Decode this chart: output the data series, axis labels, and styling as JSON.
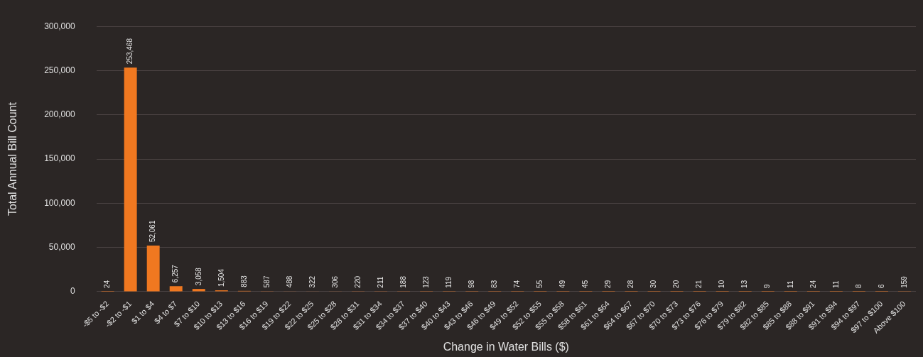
{
  "chart_data": {
    "type": "bar",
    "xlabel": "Change in Water Bills ($)",
    "ylabel": "Total Annual Bill Count",
    "categories": [
      "-$5 to -$2",
      "-$2 to -$1",
      "$1 to $4",
      "$4 to $7",
      "$7 to $10",
      "$10 to $13",
      "$13 to $16",
      "$16 to $19",
      "$19 to $22",
      "$22 to $25",
      "$25 to $28",
      "$28 to $31",
      "$31 to $34",
      "$34 to $37",
      "$37 to $40",
      "$40 to $43",
      "$43 to $46",
      "$46 to $49",
      "$49 to $52",
      "$52 to $55",
      "$55 to $58",
      "$58 to $61",
      "$61 to $64",
      "$64 to $67",
      "$67 to $70",
      "$70 to $73",
      "$73 to $76",
      "$76 to $79",
      "$79 to $82",
      "$82 to $85",
      "$85 to $88",
      "$88 to $91",
      "$91 to $94",
      "$94 to $97",
      "$97 to $100",
      "Above $100"
    ],
    "values": [
      24,
      253468,
      52061,
      6257,
      3058,
      1504,
      883,
      587,
      488,
      322,
      306,
      220,
      211,
      188,
      123,
      119,
      98,
      83,
      74,
      55,
      49,
      45,
      29,
      28,
      30,
      20,
      21,
      10,
      13,
      9,
      11,
      24,
      11,
      8,
      6,
      159
    ],
    "color": "#f07820",
    "ylim": [
      0,
      300000
    ],
    "yticks": [
      {
        "value": 0,
        "label": "0"
      },
      {
        "value": 50000,
        "label": "50,000"
      },
      {
        "value": 100000,
        "label": "100,000"
      },
      {
        "value": 150000,
        "label": "150,000"
      },
      {
        "value": 200000,
        "label": "200,000"
      },
      {
        "value": 250000,
        "label": "250,000"
      },
      {
        "value": 300000,
        "label": "300,000"
      }
    ],
    "value_labels": [
      "24",
      "253,468",
      "52,061",
      "6,257",
      "3,058",
      "1,504",
      "883",
      "587",
      "488",
      "322",
      "306",
      "220",
      "211",
      "188",
      "123",
      "119",
      "98",
      "83",
      "74",
      "55",
      "49",
      "45",
      "29",
      "28",
      "30",
      "20",
      "21",
      "10",
      "13",
      "9",
      "11",
      "24",
      "11",
      "8",
      "6",
      "159"
    ],
    "grid": "y"
  }
}
